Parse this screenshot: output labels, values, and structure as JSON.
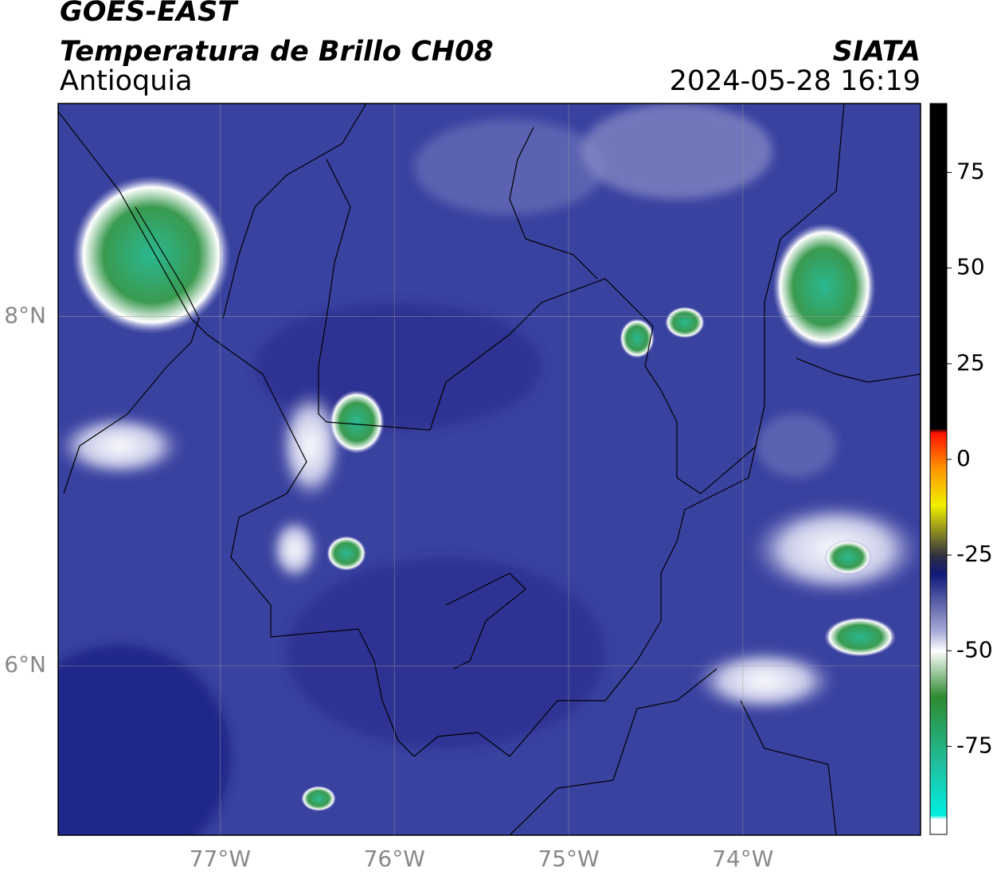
{
  "header": {
    "title": "GOES-EAST",
    "subtitle": "Temperatura de Brillo CH08",
    "region": "Antioquia",
    "source": "SIATA",
    "timestamp": "2024-05-28 16:19"
  },
  "map": {
    "lonlim": [
      -77.93,
      -72.98
    ],
    "latlim": [
      5.03,
      9.22
    ],
    "lonticks": [
      {
        "value": -77,
        "label": "77°W"
      },
      {
        "value": -76,
        "label": "76°W"
      },
      {
        "value": -75,
        "label": "75°W"
      },
      {
        "value": -74,
        "label": "74°W"
      }
    ],
    "latticks": [
      {
        "value": 8,
        "label": "8°N"
      },
      {
        "value": 6,
        "label": "6°N"
      }
    ],
    "grid": true
  },
  "colorbar": {
    "lim": [
      -98,
      93
    ],
    "ticks": [
      75,
      50,
      25,
      0,
      -25,
      -50,
      -75
    ],
    "colormap": {
      "values": [
        -98,
        -94,
        -93,
        -80,
        -62,
        -50,
        -45,
        -30,
        -25,
        -12,
        -2,
        7,
        8,
        93
      ],
      "colors": [
        "#ffffff",
        "#ffffff",
        "#00eee0",
        "#20c0a0",
        "#2e8a30",
        "#ffffff",
        "#a8acd8",
        "#10187a",
        "#303040",
        "#f0f000",
        "#ff9000",
        "#ff1000",
        "#000000",
        "#000000"
      ]
    }
  }
}
